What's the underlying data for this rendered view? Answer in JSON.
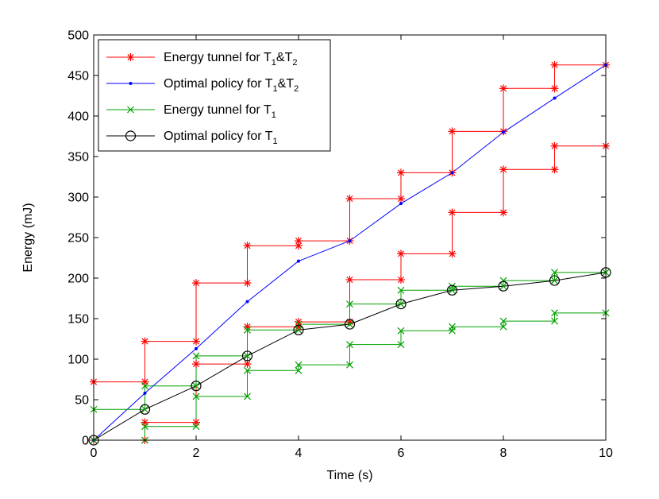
{
  "chart_data": {
    "type": "line",
    "title": "",
    "xlabel": "Time (s)",
    "ylabel": "Energy (mJ)",
    "xlim": [
      0,
      10
    ],
    "ylim": [
      0,
      500
    ],
    "xticks": [
      0,
      2,
      4,
      6,
      8,
      10
    ],
    "yticks": [
      0,
      50,
      100,
      150,
      200,
      250,
      300,
      350,
      400,
      450,
      500
    ],
    "grid": false,
    "legend_position": "top-left",
    "series": [
      {
        "name": "Energy tunnel for T1&T2",
        "legend": {
          "main": "Energy tunnel for T",
          "sub1": "1",
          "mid": "&T",
          "sub2": "2"
        },
        "color": "#ff0000",
        "marker": "asterisk",
        "style": "step",
        "upper": {
          "x": [
            0,
            1,
            1,
            2,
            2,
            3,
            3,
            4,
            4,
            5,
            5,
            6,
            6,
            7,
            7,
            8,
            8,
            9,
            9,
            10
          ],
          "y": [
            72,
            72,
            122,
            122,
            194,
            194,
            240,
            240,
            246,
            246,
            298,
            298,
            330,
            330,
            381,
            381,
            434,
            434,
            463,
            463
          ]
        },
        "lower": {
          "x": [
            0,
            1,
            1,
            2,
            2,
            3,
            3,
            4,
            4,
            5,
            5,
            6,
            6,
            7,
            7,
            8,
            8,
            9,
            9,
            10
          ],
          "y": [
            0,
            0,
            22,
            22,
            94,
            94,
            140,
            140,
            146,
            146,
            198,
            198,
            230,
            230,
            281,
            281,
            334,
            334,
            363,
            363
          ]
        }
      },
      {
        "name": "Optimal policy for T1&T2",
        "legend": {
          "main": "Optimal policy for T",
          "sub1": "1",
          "mid": "&T",
          "sub2": "2"
        },
        "color": "#0000ff",
        "marker": "dot",
        "style": "line",
        "x": [
          0,
          1,
          2,
          3,
          4,
          5,
          6,
          7,
          8,
          9,
          10
        ],
        "y": [
          0,
          58,
          113,
          171,
          221,
          246,
          292,
          330,
          380,
          422,
          463
        ]
      },
      {
        "name": "Energy tunnel for T1",
        "legend": {
          "main": "Energy tunnel for T",
          "sub1": "1"
        },
        "color": "#00a000",
        "marker": "x",
        "style": "step",
        "upper": {
          "x": [
            0,
            1,
            1,
            2,
            2,
            3,
            3,
            4,
            4,
            5,
            5,
            6,
            6,
            7,
            7,
            8,
            8,
            9,
            9,
            10
          ],
          "y": [
            38,
            38,
            67,
            67,
            104,
            104,
            136,
            136,
            143,
            143,
            168,
            168,
            185,
            185,
            190,
            190,
            197,
            197,
            207,
            207
          ]
        },
        "lower": {
          "x": [
            0,
            1,
            1,
            2,
            2,
            3,
            3,
            4,
            4,
            5,
            5,
            6,
            6,
            7,
            7,
            8,
            8,
            9,
            9,
            10
          ],
          "y": [
            0,
            0,
            17,
            17,
            54,
            54,
            86,
            86,
            93,
            93,
            118,
            118,
            135,
            135,
            140,
            140,
            147,
            147,
            157,
            157
          ]
        }
      },
      {
        "name": "Optimal policy for T1",
        "legend": {
          "main": "Optimal policy for T",
          "sub1": "1"
        },
        "color": "#000000",
        "marker": "circle",
        "style": "line",
        "x": [
          0,
          1,
          2,
          3,
          4,
          5,
          6,
          7,
          8,
          9,
          10
        ],
        "y": [
          0,
          38,
          67,
          104,
          136,
          143,
          168,
          185,
          190,
          197,
          207
        ]
      }
    ]
  }
}
